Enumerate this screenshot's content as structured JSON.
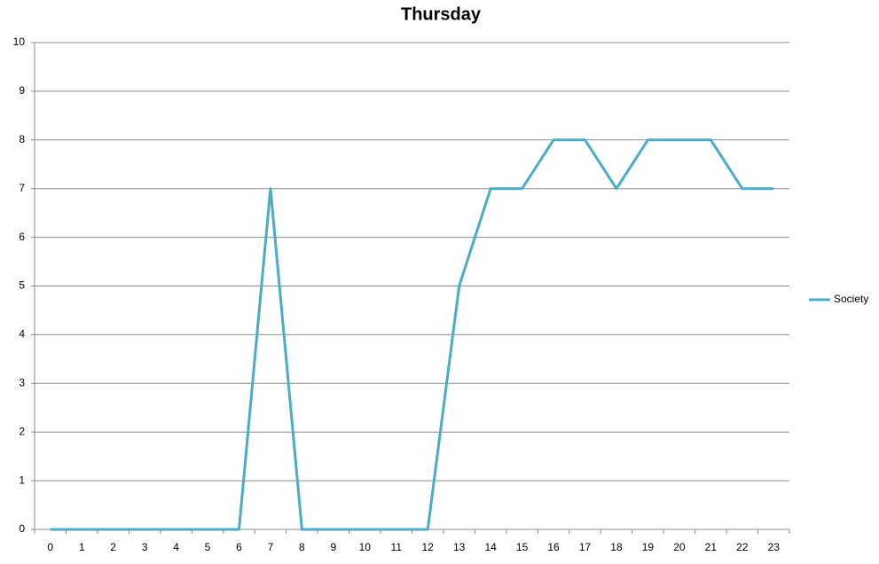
{
  "chart_data": {
    "type": "line",
    "title": "Thursday",
    "categories": [
      "0",
      "1",
      "2",
      "3",
      "4",
      "5",
      "6",
      "7",
      "8",
      "9",
      "10",
      "11",
      "12",
      "13",
      "14",
      "15",
      "16",
      "17",
      "18",
      "19",
      "20",
      "21",
      "22",
      "23"
    ],
    "series": [
      {
        "name": "Society",
        "color": "#4bacc6",
        "values": [
          0,
          0,
          0,
          0,
          0,
          0,
          0,
          7,
          0,
          0,
          0,
          0,
          0,
          5,
          7,
          7,
          8,
          8,
          7,
          8,
          8,
          8,
          7,
          7
        ]
      }
    ],
    "ylim": [
      0,
      10
    ],
    "yticks": [
      0,
      1,
      2,
      3,
      4,
      5,
      6,
      7,
      8,
      9,
      10
    ],
    "grid": true,
    "legend": "right"
  }
}
